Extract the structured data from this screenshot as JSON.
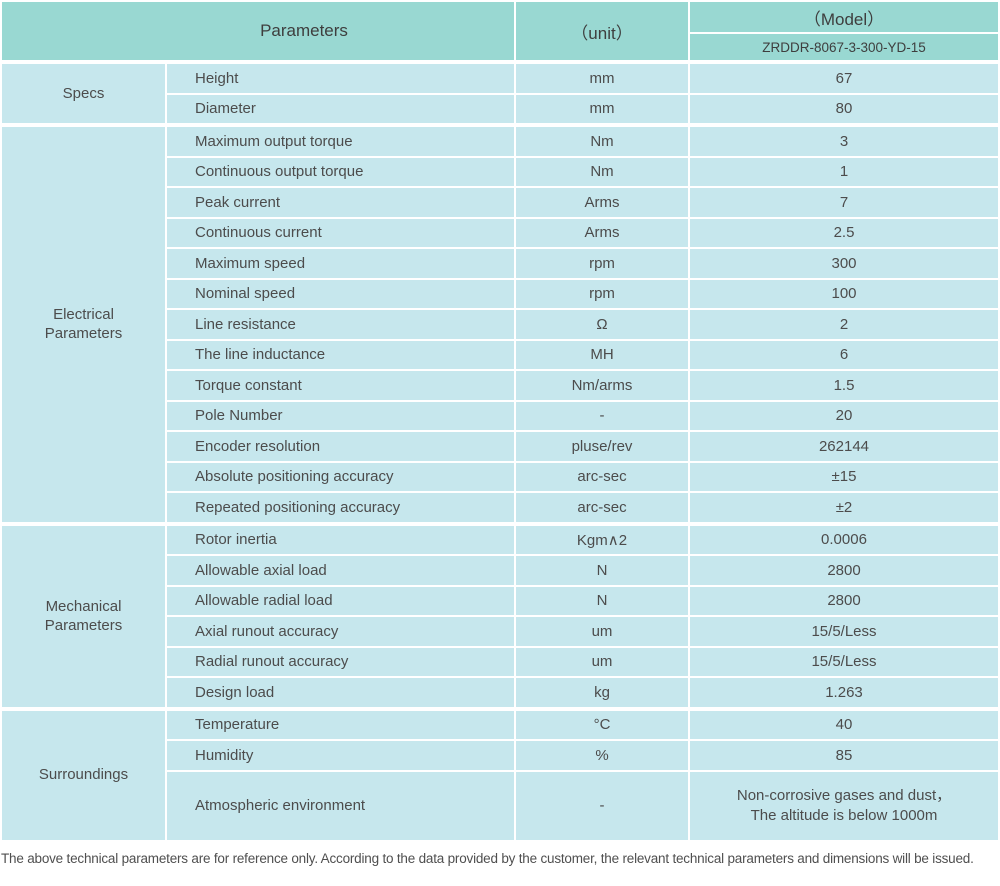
{
  "colors": {
    "header_bg": "#99d8d2",
    "row_bg": "#c6e7ed"
  },
  "header": {
    "parameters_label": "Parameters",
    "unit_label": "（unit）",
    "model_label": "（Model）",
    "model_value": "ZRDDR-8067-3-300-YD-15"
  },
  "sections": [
    {
      "category": "Specs",
      "rows": [
        {
          "parameter": "Height",
          "unit": "mm",
          "value": "67"
        },
        {
          "parameter": "Diameter",
          "unit": "mm",
          "value": "80"
        }
      ]
    },
    {
      "category": "Electrical\nParameters",
      "rows": [
        {
          "parameter": "Maximum output torque",
          "unit": "Nm",
          "value": "3"
        },
        {
          "parameter": "Continuous output torque",
          "unit": "Nm",
          "value": "1"
        },
        {
          "parameter": "Peak current",
          "unit": "Arms",
          "value": "7"
        },
        {
          "parameter": "Continuous current",
          "unit": "Arms",
          "value": "2.5"
        },
        {
          "parameter": "Maximum speed",
          "unit": "rpm",
          "value": "300"
        },
        {
          "parameter": "Nominal speed",
          "unit": "rpm",
          "value": "100"
        },
        {
          "parameter": "Line resistance",
          "unit": "Ω",
          "value": "2"
        },
        {
          "parameter": "The line inductance",
          "unit": "MH",
          "value": "6"
        },
        {
          "parameter": "Torque constant",
          "unit": "Nm/arms",
          "value": "1.5"
        },
        {
          "parameter": "Pole Number",
          "unit": "-",
          "value": "20"
        },
        {
          "parameter": "Encoder resolution",
          "unit": "pluse/rev",
          "value": "262144"
        },
        {
          "parameter": "Absolute positioning accuracy",
          "unit": "arc-sec",
          "value": "±15"
        },
        {
          "parameter": "Repeated positioning accuracy",
          "unit": "arc-sec",
          "value": "±2"
        }
      ]
    },
    {
      "category": "Mechanical\nParameters",
      "rows": [
        {
          "parameter": "Rotor inertia",
          "unit": "Kgm∧2",
          "value": "0.0006"
        },
        {
          "parameter": "Allowable axial load",
          "unit": "N",
          "value": "2800"
        },
        {
          "parameter": "Allowable radial load",
          "unit": "N",
          "value": "2800"
        },
        {
          "parameter": "Axial runout accuracy",
          "unit": "um",
          "value": "15/5/Less"
        },
        {
          "parameter": "Radial runout accuracy",
          "unit": "um",
          "value": "15/5/Less"
        },
        {
          "parameter": "Design load",
          "unit": "kg",
          "value": "1.263"
        }
      ]
    },
    {
      "category": "Surroundings",
      "rows": [
        {
          "parameter": "Temperature",
          "unit": "°C",
          "value": "40"
        },
        {
          "parameter": "Humidity",
          "unit": "%",
          "value": "85"
        },
        {
          "parameter": "Atmospheric environment",
          "unit": "-",
          "value": "Non-corrosive gases and dust，\nThe altitude is below 1000m"
        }
      ]
    }
  ],
  "footnote": "The above technical parameters are for reference only. According to the data provided by the customer, the relevant technical parameters and dimensions will be issued."
}
